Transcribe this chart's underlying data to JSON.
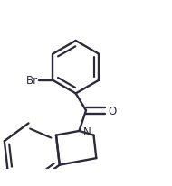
{
  "bg_color": "#ffffff",
  "bond_color": "#2a2a3a",
  "line_width": 1.7,
  "br_label": "Br",
  "o_label": "O",
  "n_label": "N",
  "label_fontsize": 8.5,
  "figsize": [
    1.9,
    2.07
  ],
  "dpi": 100
}
